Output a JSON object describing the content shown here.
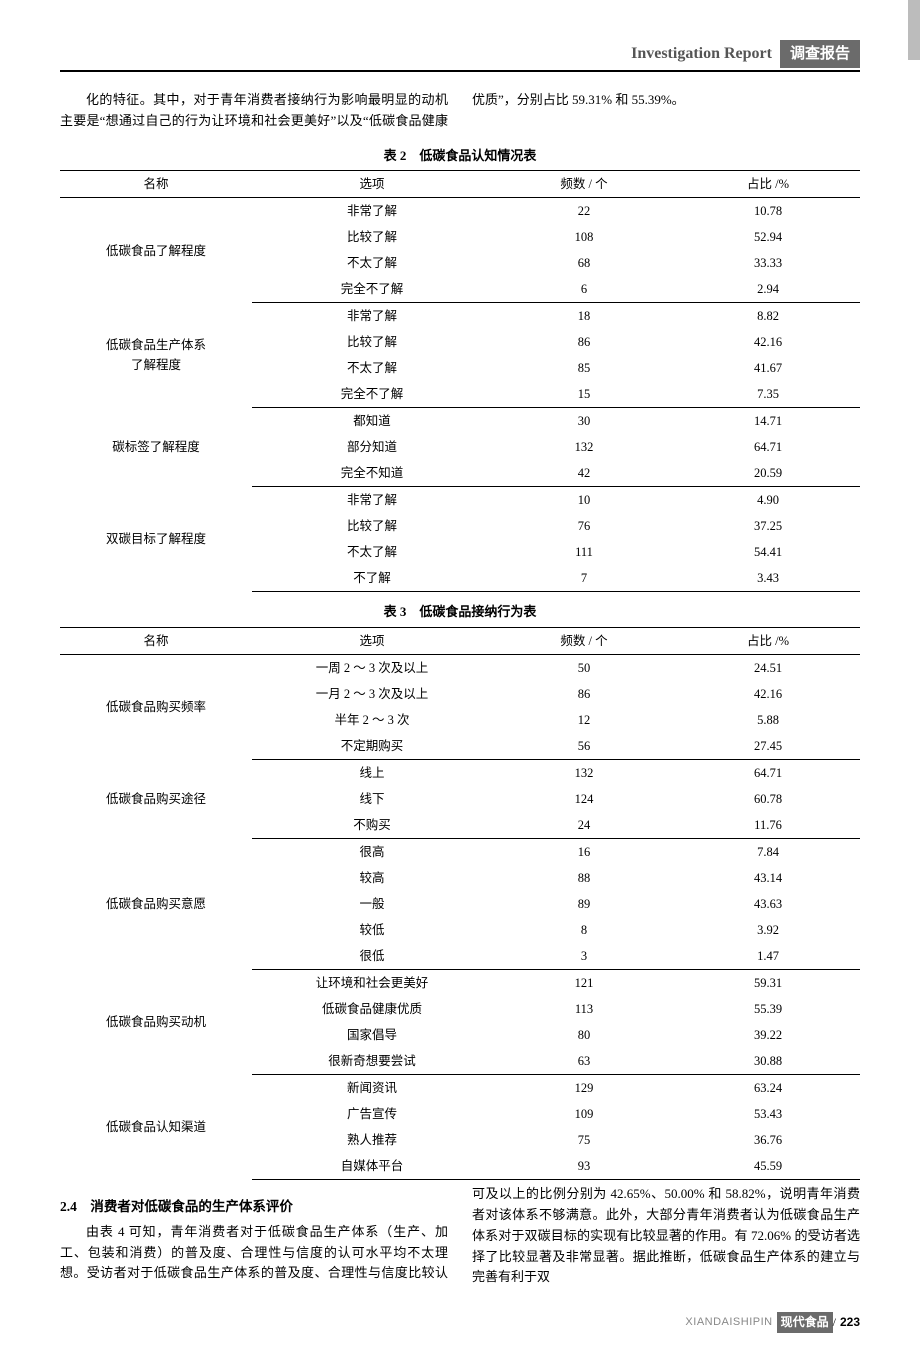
{
  "header": {
    "en": "Investigation Report",
    "zh": "调查报告"
  },
  "top_para": "化的特征。其中，对于青年消费者接纳行为影响最明显的动机主要是“想通过自己的行为让环境和社会更美好”以及“低碳食品健康优质”，分别占比 59.31% 和 55.39%。",
  "table2": {
    "caption": "表 2　低碳食品认知情况表",
    "columns": [
      "名称",
      "选项",
      "频数 / 个",
      "占比 /%"
    ],
    "groups": [
      {
        "name": "低碳食品了解程度",
        "rows": [
          [
            "非常了解",
            "22",
            "10.78"
          ],
          [
            "比较了解",
            "108",
            "52.94"
          ],
          [
            "不太了解",
            "68",
            "33.33"
          ],
          [
            "完全不了解",
            "6",
            "2.94"
          ]
        ]
      },
      {
        "name": "低碳食品生产体系\n了解程度",
        "rows": [
          [
            "非常了解",
            "18",
            "8.82"
          ],
          [
            "比较了解",
            "86",
            "42.16"
          ],
          [
            "不太了解",
            "85",
            "41.67"
          ],
          [
            "完全不了解",
            "15",
            "7.35"
          ]
        ]
      },
      {
        "name": "碳标签了解程度",
        "rows": [
          [
            "都知道",
            "30",
            "14.71"
          ],
          [
            "部分知道",
            "132",
            "64.71"
          ],
          [
            "完全不知道",
            "42",
            "20.59"
          ]
        ]
      },
      {
        "name": "双碳目标了解程度",
        "rows": [
          [
            "非常了解",
            "10",
            "4.90"
          ],
          [
            "比较了解",
            "76",
            "37.25"
          ],
          [
            "不太了解",
            "111",
            "54.41"
          ],
          [
            "不了解",
            "7",
            "3.43"
          ]
        ]
      }
    ]
  },
  "table3": {
    "caption": "表 3　低碳食品接纳行为表",
    "columns": [
      "名称",
      "选项",
      "频数 / 个",
      "占比 /%"
    ],
    "groups": [
      {
        "name": "低碳食品购买频率",
        "rows": [
          [
            "一周 2 ～ 3 次及以上",
            "50",
            "24.51"
          ],
          [
            "一月 2 ～ 3 次及以上",
            "86",
            "42.16"
          ],
          [
            "半年 2 ～ 3 次",
            "12",
            "5.88"
          ],
          [
            "不定期购买",
            "56",
            "27.45"
          ]
        ]
      },
      {
        "name": "低碳食品购买途径",
        "rows": [
          [
            "线上",
            "132",
            "64.71"
          ],
          [
            "线下",
            "124",
            "60.78"
          ],
          [
            "不购买",
            "24",
            "11.76"
          ]
        ]
      },
      {
        "name": "低碳食品购买意愿",
        "rows": [
          [
            "很高",
            "16",
            "7.84"
          ],
          [
            "较高",
            "88",
            "43.14"
          ],
          [
            "一般",
            "89",
            "43.63"
          ],
          [
            "较低",
            "8",
            "3.92"
          ],
          [
            "很低",
            "3",
            "1.47"
          ]
        ]
      },
      {
        "name": "低碳食品购买动机",
        "rows": [
          [
            "让环境和社会更美好",
            "121",
            "59.31"
          ],
          [
            "低碳食品健康优质",
            "113",
            "55.39"
          ],
          [
            "国家倡导",
            "80",
            "39.22"
          ],
          [
            "很新奇想要尝试",
            "63",
            "30.88"
          ]
        ]
      },
      {
        "name": "低碳食品认知渠道",
        "rows": [
          [
            "新闻资讯",
            "129",
            "63.24"
          ],
          [
            "广告宣传",
            "109",
            "53.43"
          ],
          [
            "熟人推荐",
            "75",
            "36.76"
          ],
          [
            "自媒体平台",
            "93",
            "45.59"
          ]
        ]
      }
    ]
  },
  "section": {
    "head": "2.4　消费者对低碳食品的生产体系评价",
    "para": "由表 4 可知，青年消费者对于低碳食品生产体系（生产、加工、包装和消费）的普及度、合理性与信度的认可水平均不太理想。受访者对于低碳食品生产体系的普及度、合理性与信度比较认可及以上的比例分别为 42.65%、50.00% 和 58.82%，说明青年消费者对该体系不够满意。此外，大部分青年消费者认为低碳食品生产体系对于双碳目标的实现有比较显著的作用。有 72.06% 的受访者选择了比较显著及非常显著。据此推断，低碳食品生产体系的建立与完善有利于双"
  },
  "footer": {
    "pinyin": "XIANDAISHIPIN",
    "mag": "现代食品",
    "page": "223"
  }
}
